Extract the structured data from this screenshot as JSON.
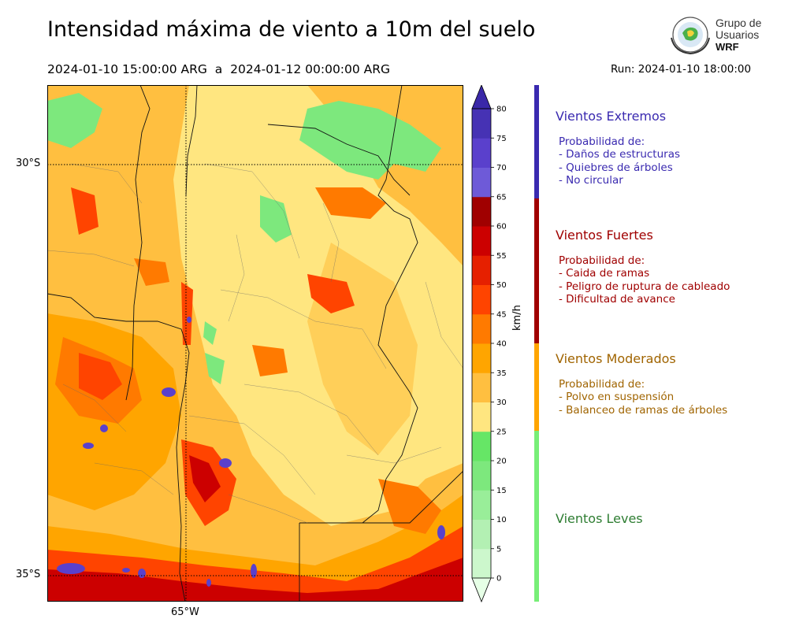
{
  "header": {
    "title": "Intensidad máxima de viento a 10m del suelo",
    "period": "2024-01-10 15:00:00 ARG  a  2024-01-12 00:00:00 ARG",
    "run": "Run: 2024-01-10 18:00:00"
  },
  "logo": {
    "line1": "Grupo de",
    "line2": "Usuarios",
    "line3": "WRF"
  },
  "map": {
    "lat_labels": [
      "30°S",
      "35°S"
    ],
    "lon_labels": [
      "65°W"
    ]
  },
  "colorbar": {
    "unit": "km/h",
    "ticks": [
      "0",
      "5",
      "10",
      "15",
      "20",
      "25",
      "30",
      "35",
      "40",
      "45",
      "50",
      "55",
      "60",
      "65",
      "70",
      "75",
      "80"
    ],
    "colors": [
      "#e6ffe6",
      "#ccf7cc",
      "#b3f0b3",
      "#99ee99",
      "#7de87d",
      "#66e666",
      "#ffe680",
      "#ffbf40",
      "#ffa500",
      "#ff7a00",
      "#ff4400",
      "#e62000",
      "#cc0000",
      "#a00000",
      "#6e5ad8",
      "#5a40cc",
      "#4632b4",
      "#3a28a8"
    ]
  },
  "bands": [
    {
      "title": "Vientos Extremos",
      "color": "#3a2ab0",
      "items": [
        "Probabilidad de:",
        "- Daños de estructuras",
        "- Quiebres de árboles",
        "- No circular"
      ]
    },
    {
      "title": "Vientos Fuertes",
      "color": "#a00000",
      "items": [
        "Probabilidad de:",
        "- Caida de ramas",
        "- Peligro de ruptura de cableado",
        "- Dificultad de avance"
      ]
    },
    {
      "title": "Vientos Moderados",
      "color": "#a06400",
      "bar_color": "#ffa500",
      "items": [
        "Probabilidad de:",
        "- Polvo en suspensión",
        "- Balanceo de ramas de árboles"
      ]
    },
    {
      "title": "Vientos Leves",
      "color": "#2e7d32",
      "bar_color": "#77ee77",
      "items": []
    }
  ]
}
